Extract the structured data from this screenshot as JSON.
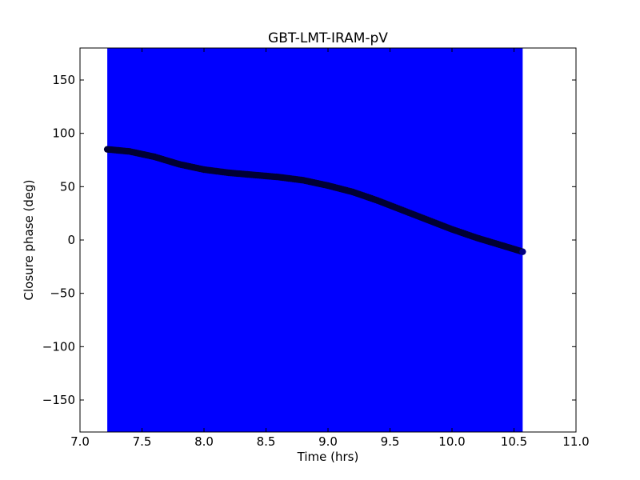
{
  "chart_data": {
    "type": "scatter",
    "title": "GBT-LMT-IRAM-pV",
    "xlabel": "Time (hrs)",
    "ylabel": "Closure phase (deg)",
    "xlim": [
      7.0,
      11.0
    ],
    "ylim": [
      -180,
      180
    ],
    "xticks": [
      7.0,
      7.5,
      8.0,
      8.5,
      9.0,
      9.5,
      10.0,
      10.5,
      11.0
    ],
    "xtick_labels": [
      "7.0",
      "7.5",
      "8.0",
      "8.5",
      "9.0",
      "9.5",
      "10.0",
      "10.5",
      "11.0"
    ],
    "yticks": [
      -150,
      -100,
      -50,
      0,
      50,
      100,
      150
    ],
    "ytick_labels": [
      "−150",
      "−100",
      "−50",
      "0",
      "50",
      "100",
      "150"
    ],
    "grid": false,
    "error_band": {
      "color": "#0000ff",
      "x_range": [
        7.22,
        10.57
      ],
      "y_range": [
        -180,
        180
      ]
    },
    "series": [
      {
        "marker_color": "#000033",
        "x": [
          7.22,
          7.4,
          7.6,
          7.8,
          8.0,
          8.2,
          8.4,
          8.6,
          8.8,
          9.0,
          9.2,
          9.4,
          9.6,
          9.8,
          10.0,
          10.2,
          10.4,
          10.57
        ],
        "y": [
          85,
          83,
          78,
          71,
          66,
          63,
          61,
          59,
          56,
          51,
          45,
          37,
          28,
          19,
          10,
          2,
          -5,
          -11
        ]
      }
    ]
  }
}
